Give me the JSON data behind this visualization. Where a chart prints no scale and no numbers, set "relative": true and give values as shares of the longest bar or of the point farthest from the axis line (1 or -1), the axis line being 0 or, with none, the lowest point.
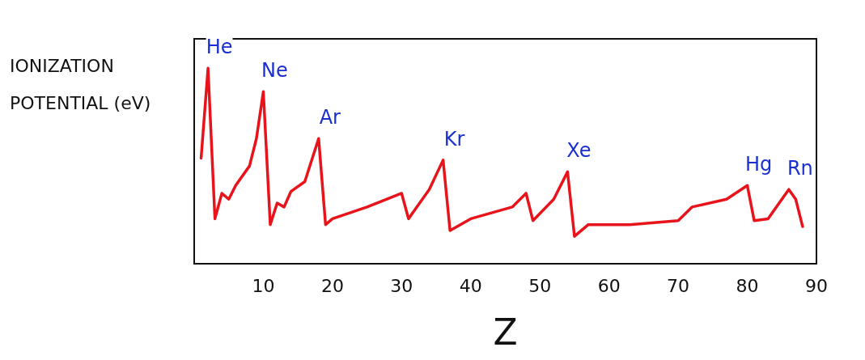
{
  "chart_data": {
    "type": "line",
    "relative": true,
    "xlabel": "Z",
    "ylabel": "IONIZATION POTENTIAL (eV)",
    "xlim": [
      0,
      90
    ],
    "xticks": [
      10,
      20,
      30,
      40,
      50,
      60,
      70,
      80,
      90
    ],
    "grid": false,
    "marker": "none",
    "line_style": "solid",
    "series": [
      {
        "color": "#e8141c",
        "x": [
          1,
          2,
          3,
          4,
          5,
          6,
          8,
          9,
          10,
          11,
          12,
          13,
          14,
          16,
          18,
          19,
          20,
          25,
          30,
          31,
          34,
          36,
          37,
          40,
          46,
          48,
          49,
          52,
          54,
          55,
          57,
          63,
          70,
          72,
          77,
          80,
          81,
          83,
          86,
          87,
          88
        ],
        "values": [
          0.54,
          1.0,
          0.23,
          0.36,
          0.33,
          0.4,
          0.5,
          0.64,
          0.88,
          0.2,
          0.31,
          0.29,
          0.37,
          0.42,
          0.64,
          0.2,
          0.23,
          0.29,
          0.36,
          0.23,
          0.38,
          0.53,
          0.17,
          0.23,
          0.29,
          0.36,
          0.22,
          0.33,
          0.47,
          0.14,
          0.2,
          0.2,
          0.22,
          0.29,
          0.33,
          0.4,
          0.22,
          0.23,
          0.38,
          0.33,
          0.19
        ]
      }
    ],
    "annotations": [
      {
        "text": "He",
        "x": 2,
        "y": 1.0
      },
      {
        "text": "Ne",
        "x": 10,
        "y": 0.88
      },
      {
        "text": "Ar",
        "x": 18,
        "y": 0.64
      },
      {
        "text": "Kr",
        "x": 36,
        "y": 0.53
      },
      {
        "text": "Xe",
        "x": 54,
        "y": 0.47
      },
      {
        "text": "Hg",
        "x": 80,
        "y": 0.4
      },
      {
        "text": "Rn",
        "x": 86,
        "y": 0.38
      }
    ]
  }
}
